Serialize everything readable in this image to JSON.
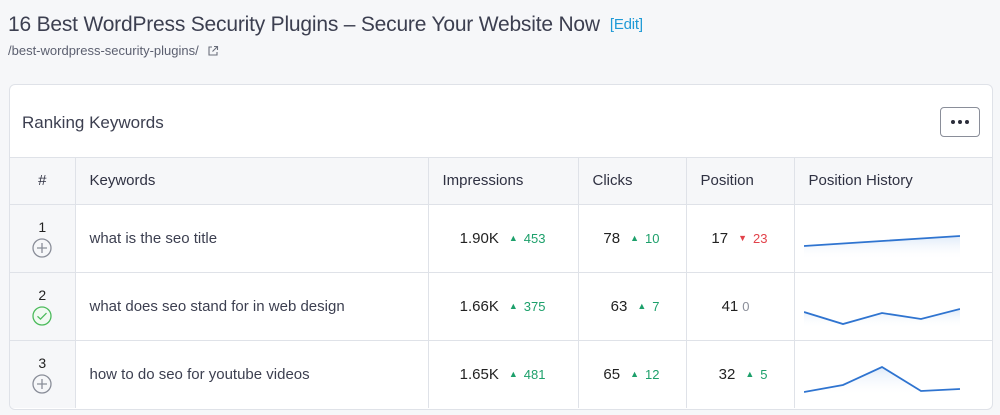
{
  "page": {
    "title": "16 Best WordPress Security Plugins – Secure Your Website Now",
    "edit_label": "[Edit]",
    "permalink": "/best-wordpress-security-plugins/"
  },
  "card": {
    "title": "Ranking Keywords",
    "more_label": "•••"
  },
  "table": {
    "headers": [
      "#",
      "Keywords",
      "Impressions",
      "Clicks",
      "Position",
      "Position History"
    ],
    "rows": [
      {
        "index": "1",
        "status_icon": "add-circle-icon",
        "keyword": "what is the seo title",
        "impressions": "1.90K",
        "impressions_delta": "453",
        "impressions_dir": "up",
        "clicks": "78",
        "clicks_delta": "10",
        "clicks_dir": "up",
        "position": "17",
        "position_delta": "23",
        "position_dir": "down",
        "history": [
          30,
          27.5,
          25,
          22.5,
          20
        ]
      },
      {
        "index": "2",
        "status_icon": "check-circle-icon",
        "keyword": "what does seo stand for in web design",
        "impressions": "1.66K",
        "impressions_delta": "375",
        "impressions_dir": "up",
        "clicks": "63",
        "clicks_delta": "7",
        "clicks_dir": "up",
        "position": "41",
        "position_delta": "0",
        "position_dir": "flat",
        "history": [
          28,
          40,
          29,
          35,
          25
        ]
      },
      {
        "index": "3",
        "status_icon": "add-circle-icon",
        "keyword": "how to do seo for youtube videos",
        "impressions": "1.65K",
        "impressions_delta": "481",
        "impressions_dir": "up",
        "clicks": "65",
        "clicks_delta": "12",
        "clicks_dir": "up",
        "position": "32",
        "position_delta": "5",
        "position_dir": "up",
        "history": [
          40,
          33,
          15,
          39,
          37
        ]
      }
    ]
  },
  "colors": {
    "accent_link": "#1f9ad6",
    "up": "#1da06b",
    "down": "#e2424a",
    "neutral": "#8a8e99",
    "sparkline": "#2f74d0",
    "check": "#4cbb5c"
  }
}
